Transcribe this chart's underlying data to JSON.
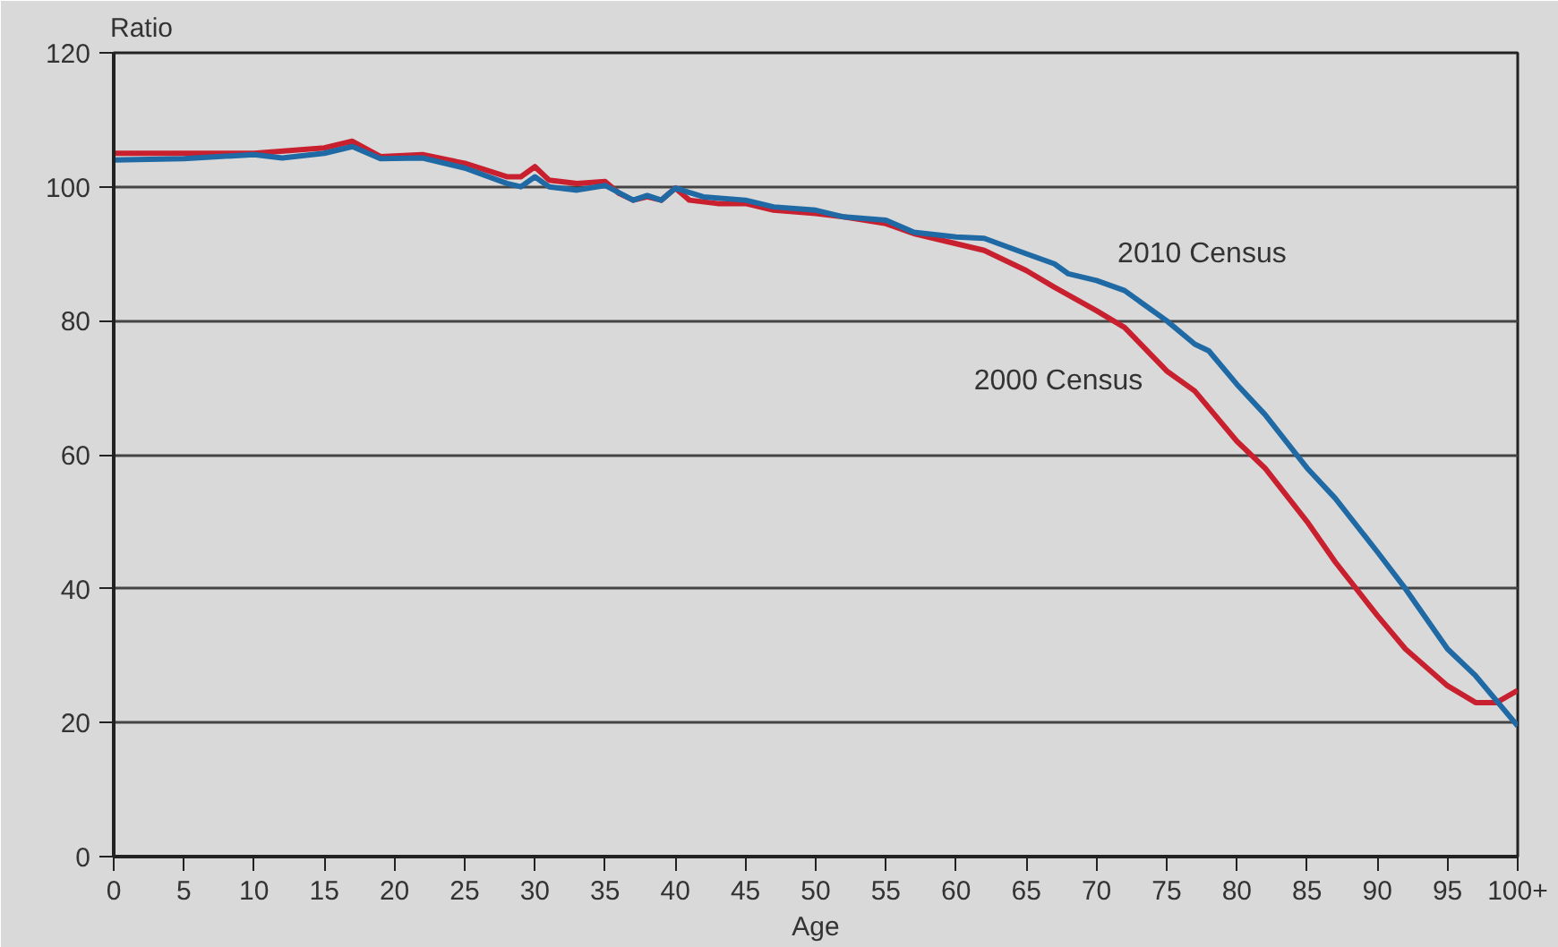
{
  "chart_data": {
    "type": "line",
    "xlabel": "Age",
    "ylabel": "Ratio",
    "xlim": [
      0,
      100
    ],
    "ylim": [
      0,
      120
    ],
    "xticks": [
      0,
      5,
      10,
      15,
      20,
      25,
      30,
      35,
      40,
      45,
      50,
      55,
      60,
      65,
      70,
      75,
      80,
      85,
      90,
      95,
      {
        "value": 100,
        "label": "100+"
      }
    ],
    "yticks": [
      0,
      20,
      40,
      60,
      80,
      100,
      120
    ],
    "grid": "y",
    "legend": false,
    "marker": "none",
    "line_style": "solid",
    "series": [
      {
        "name": "2000 Census",
        "color": "#c8202f",
        "x": [
          0,
          5,
          10,
          15,
          17,
          19,
          22,
          25,
          28,
          29,
          30,
          31,
          33,
          35,
          36,
          37,
          38,
          39,
          40,
          41,
          43,
          45,
          47,
          50,
          52,
          55,
          57,
          60,
          62,
          65,
          67,
          70,
          72,
          75,
          77,
          80,
          82,
          85,
          87,
          90,
          92,
          95,
          97,
          98.5,
          100
        ],
        "values": [
          105,
          105,
          105,
          105.8,
          106.8,
          104.5,
          104.8,
          103.5,
          101.5,
          101.5,
          103,
          101,
          100.5,
          100.8,
          99,
          98,
          98.5,
          98,
          99.8,
          98,
          97.5,
          97.5,
          96.5,
          96,
          95.5,
          94.5,
          93,
          91.5,
          90.5,
          87.5,
          85,
          81.5,
          79,
          72.5,
          69.5,
          62,
          58,
          50,
          44,
          36,
          31,
          25.5,
          23,
          23,
          24.8
        ]
      },
      {
        "name": "2010 Census",
        "color": "#1f6aa5",
        "x": [
          0,
          5,
          10,
          12,
          15,
          17,
          19,
          22,
          25,
          28,
          29,
          30,
          31,
          33,
          35,
          37,
          38,
          39,
          40,
          42,
          45,
          47,
          50,
          52,
          55,
          57,
          60,
          62,
          65,
          67,
          68,
          70,
          72,
          75,
          77,
          78,
          80,
          82,
          85,
          87,
          90,
          92,
          95,
          97,
          100
        ],
        "values": [
          104,
          104.2,
          104.8,
          104.3,
          105,
          106,
          104.2,
          104.3,
          102.8,
          100.5,
          100,
          101.5,
          100,
          99.5,
          100.2,
          98,
          98.7,
          98,
          99.8,
          98.5,
          98,
          97,
          96.5,
          95.5,
          95,
          93.2,
          92.5,
          92.3,
          90,
          88.5,
          87,
          86,
          84.5,
          80,
          76.5,
          75.5,
          70.5,
          66,
          58,
          53.5,
          45.5,
          40,
          31,
          27,
          19.5
        ]
      }
    ]
  }
}
